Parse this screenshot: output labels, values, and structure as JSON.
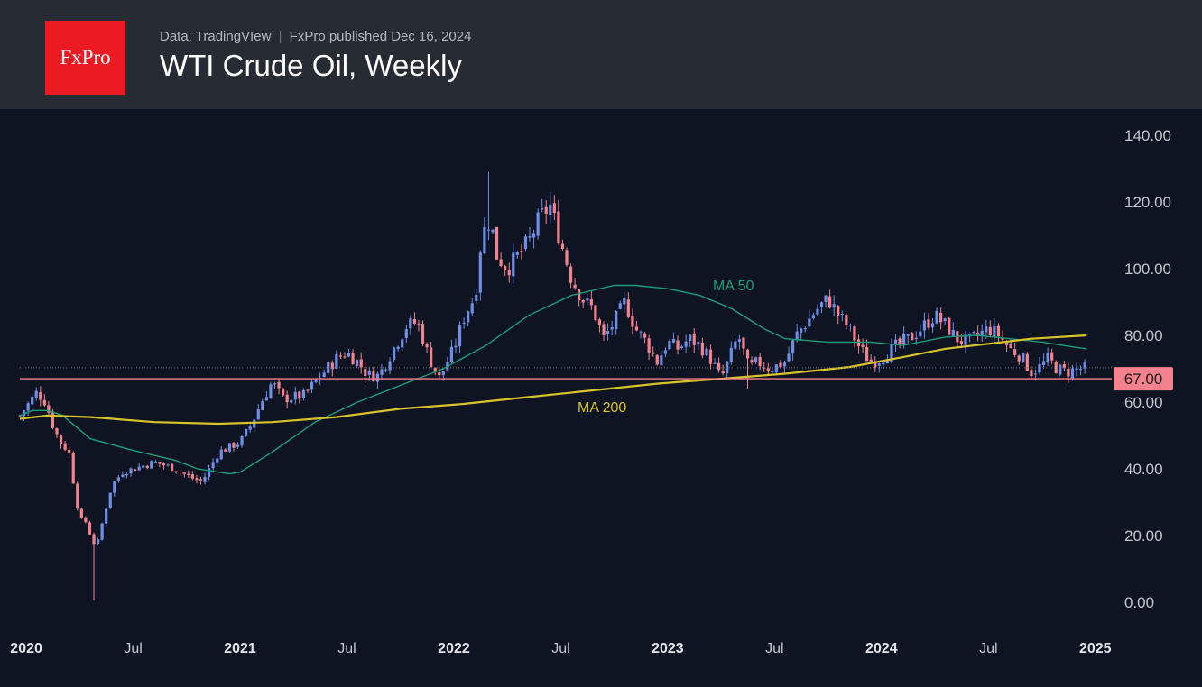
{
  "header": {
    "logo_text": "FxPro",
    "source_text": "Data: TradingVIew",
    "separator": "|",
    "published_text": "FxPro published Dec 16, 2024",
    "title": "WTI Crude Oil, Weekly"
  },
  "colors": {
    "background": "#0e1421",
    "header_bg": "#272b33",
    "logo_bg": "#ec1b23",
    "up_candle": "#6f8ee6",
    "down_candle": "#f4828e",
    "ma50": "#1a9e77",
    "ma200": "#d9c32a",
    "price_line": "#f4828e"
  },
  "chart_data": {
    "type": "candlestick",
    "title": "WTI Crude Oil, Weekly",
    "y_axis_ticks": [
      "0.00",
      "20.00",
      "40.00",
      "60.00",
      "80.00",
      "100.00",
      "120.00",
      "140.00"
    ],
    "ylim": [
      0,
      140
    ],
    "x_axis_ticks": [
      "2020",
      "Jul",
      "2021",
      "Jul",
      "2022",
      "Jul",
      "2023",
      "Jul",
      "2024",
      "Jul",
      "2025"
    ],
    "x_tick_times": [
      2020.0,
      2020.5,
      2021.0,
      2021.5,
      2022.0,
      2022.5,
      2023.0,
      2023.5,
      2024.0,
      2024.5,
      2025.0
    ],
    "xlim": [
      2019.97,
      2025.06
    ],
    "current_price": 67.0,
    "current_price_label": "67.00",
    "annotations": [
      {
        "text": "MA 50",
        "series": "MA 50"
      },
      {
        "text": "MA 200",
        "series": "MA 200"
      }
    ],
    "price_path": [
      [
        2019.97,
        56
      ],
      [
        2020.05,
        63
      ],
      [
        2020.09,
        60
      ],
      [
        2020.13,
        52
      ],
      [
        2020.16,
        48
      ],
      [
        2020.2,
        45
      ],
      [
        2020.23,
        32
      ],
      [
        2020.25,
        25
      ],
      [
        2020.28,
        24
      ],
      [
        2020.31,
        18
      ],
      [
        2020.33,
        17
      ],
      [
        2020.36,
        25
      ],
      [
        2020.4,
        35
      ],
      [
        2020.45,
        39
      ],
      [
        2020.5,
        40
      ],
      [
        2020.6,
        42
      ],
      [
        2020.7,
        40
      ],
      [
        2020.75,
        38
      ],
      [
        2020.82,
        36
      ],
      [
        2020.9,
        45
      ],
      [
        2021.0,
        48
      ],
      [
        2021.05,
        53
      ],
      [
        2021.1,
        60
      ],
      [
        2021.15,
        66
      ],
      [
        2021.2,
        61
      ],
      [
        2021.3,
        62
      ],
      [
        2021.35,
        66
      ],
      [
        2021.45,
        73
      ],
      [
        2021.5,
        75
      ],
      [
        2021.55,
        72
      ],
      [
        2021.6,
        68
      ],
      [
        2021.65,
        68
      ],
      [
        2021.7,
        74
      ],
      [
        2021.78,
        83
      ],
      [
        2021.83,
        84
      ],
      [
        2021.88,
        74
      ],
      [
        2021.93,
        67
      ],
      [
        2022.0,
        76
      ],
      [
        2022.05,
        86
      ],
      [
        2022.1,
        92
      ],
      [
        2022.13,
        110
      ],
      [
        2022.17,
        115
      ],
      [
        2022.2,
        104
      ],
      [
        2022.25,
        100
      ],
      [
        2022.3,
        104
      ],
      [
        2022.35,
        108
      ],
      [
        2022.4,
        115
      ],
      [
        2022.45,
        119
      ],
      [
        2022.5,
        108
      ],
      [
        2022.55,
        97
      ],
      [
        2022.6,
        91
      ],
      [
        2022.65,
        88
      ],
      [
        2022.7,
        79
      ],
      [
        2022.75,
        84
      ],
      [
        2022.8,
        90
      ],
      [
        2022.85,
        82
      ],
      [
        2022.9,
        78
      ],
      [
        2022.95,
        72
      ],
      [
        2023.0,
        78
      ],
      [
        2023.05,
        76
      ],
      [
        2023.1,
        79
      ],
      [
        2023.15,
        77
      ],
      [
        2023.2,
        73
      ],
      [
        2023.25,
        67
      ],
      [
        2023.3,
        75
      ],
      [
        2023.33,
        80
      ],
      [
        2023.38,
        70
      ],
      [
        2023.42,
        72
      ],
      [
        2023.48,
        70
      ],
      [
        2023.55,
        72
      ],
      [
        2023.6,
        80
      ],
      [
        2023.65,
        84
      ],
      [
        2023.7,
        88
      ],
      [
        2023.75,
        91
      ],
      [
        2023.8,
        86
      ],
      [
        2023.85,
        82
      ],
      [
        2023.9,
        76
      ],
      [
        2023.95,
        72
      ],
      [
        2024.0,
        73
      ],
      [
        2024.05,
        76
      ],
      [
        2024.1,
        78
      ],
      [
        2024.15,
        80
      ],
      [
        2024.2,
        83
      ],
      [
        2024.25,
        86
      ],
      [
        2024.3,
        83
      ],
      [
        2024.35,
        79
      ],
      [
        2024.4,
        78
      ],
      [
        2024.45,
        80
      ],
      [
        2024.5,
        82
      ],
      [
        2024.55,
        80
      ],
      [
        2024.6,
        76
      ],
      [
        2024.65,
        74
      ],
      [
        2024.7,
        69
      ],
      [
        2024.73,
        70
      ],
      [
        2024.78,
        73
      ],
      [
        2024.82,
        70
      ],
      [
        2024.87,
        69
      ],
      [
        2024.92,
        70
      ],
      [
        2024.96,
        70
      ]
    ],
    "spikes": [
      {
        "t": 2020.31,
        "low": 0.5
      },
      {
        "t": 2022.17,
        "high": 129
      },
      {
        "t": 2022.45,
        "high": 123
      },
      {
        "t": 2023.37,
        "low": 64
      }
    ],
    "series": [
      {
        "name": "MA 50",
        "color": "#1a9e77",
        "points": [
          [
            2019.97,
            56
          ],
          [
            2020.03,
            57.5
          ],
          [
            2020.1,
            57.5
          ],
          [
            2020.17,
            56
          ],
          [
            2020.3,
            49
          ],
          [
            2020.5,
            45.5
          ],
          [
            2020.7,
            42.5
          ],
          [
            2020.8,
            40
          ],
          [
            2020.95,
            38.5
          ],
          [
            2021.0,
            39
          ],
          [
            2021.15,
            45
          ],
          [
            2021.35,
            54
          ],
          [
            2021.55,
            60
          ],
          [
            2021.75,
            65
          ],
          [
            2021.95,
            70
          ],
          [
            2022.15,
            77
          ],
          [
            2022.35,
            86
          ],
          [
            2022.55,
            92
          ],
          [
            2022.75,
            95
          ],
          [
            2022.85,
            95
          ],
          [
            2023.0,
            94
          ],
          [
            2023.15,
            92
          ],
          [
            2023.3,
            88
          ],
          [
            2023.45,
            82
          ],
          [
            2023.55,
            79
          ],
          [
            2023.75,
            78
          ],
          [
            2023.95,
            78
          ],
          [
            2024.1,
            77
          ],
          [
            2024.3,
            79.5
          ],
          [
            2024.45,
            80
          ],
          [
            2024.6,
            79
          ],
          [
            2024.75,
            78
          ],
          [
            2024.9,
            76.5
          ],
          [
            2024.96,
            76
          ]
        ]
      },
      {
        "name": "MA 200",
        "color": "#d9c32a",
        "points": [
          [
            2019.97,
            55
          ],
          [
            2020.1,
            56
          ],
          [
            2020.3,
            55.5
          ],
          [
            2020.6,
            54
          ],
          [
            2020.9,
            53.5
          ],
          [
            2021.15,
            54
          ],
          [
            2021.45,
            55.5
          ],
          [
            2021.75,
            58
          ],
          [
            2022.05,
            59.5
          ],
          [
            2022.35,
            61.5
          ],
          [
            2022.65,
            63.5
          ],
          [
            2022.95,
            65.5
          ],
          [
            2023.25,
            67
          ],
          [
            2023.55,
            68.5
          ],
          [
            2023.85,
            70.5
          ],
          [
            2024.1,
            73.5
          ],
          [
            2024.3,
            76
          ],
          [
            2024.5,
            77.5
          ],
          [
            2024.7,
            79
          ],
          [
            2024.96,
            80
          ]
        ]
      }
    ]
  }
}
